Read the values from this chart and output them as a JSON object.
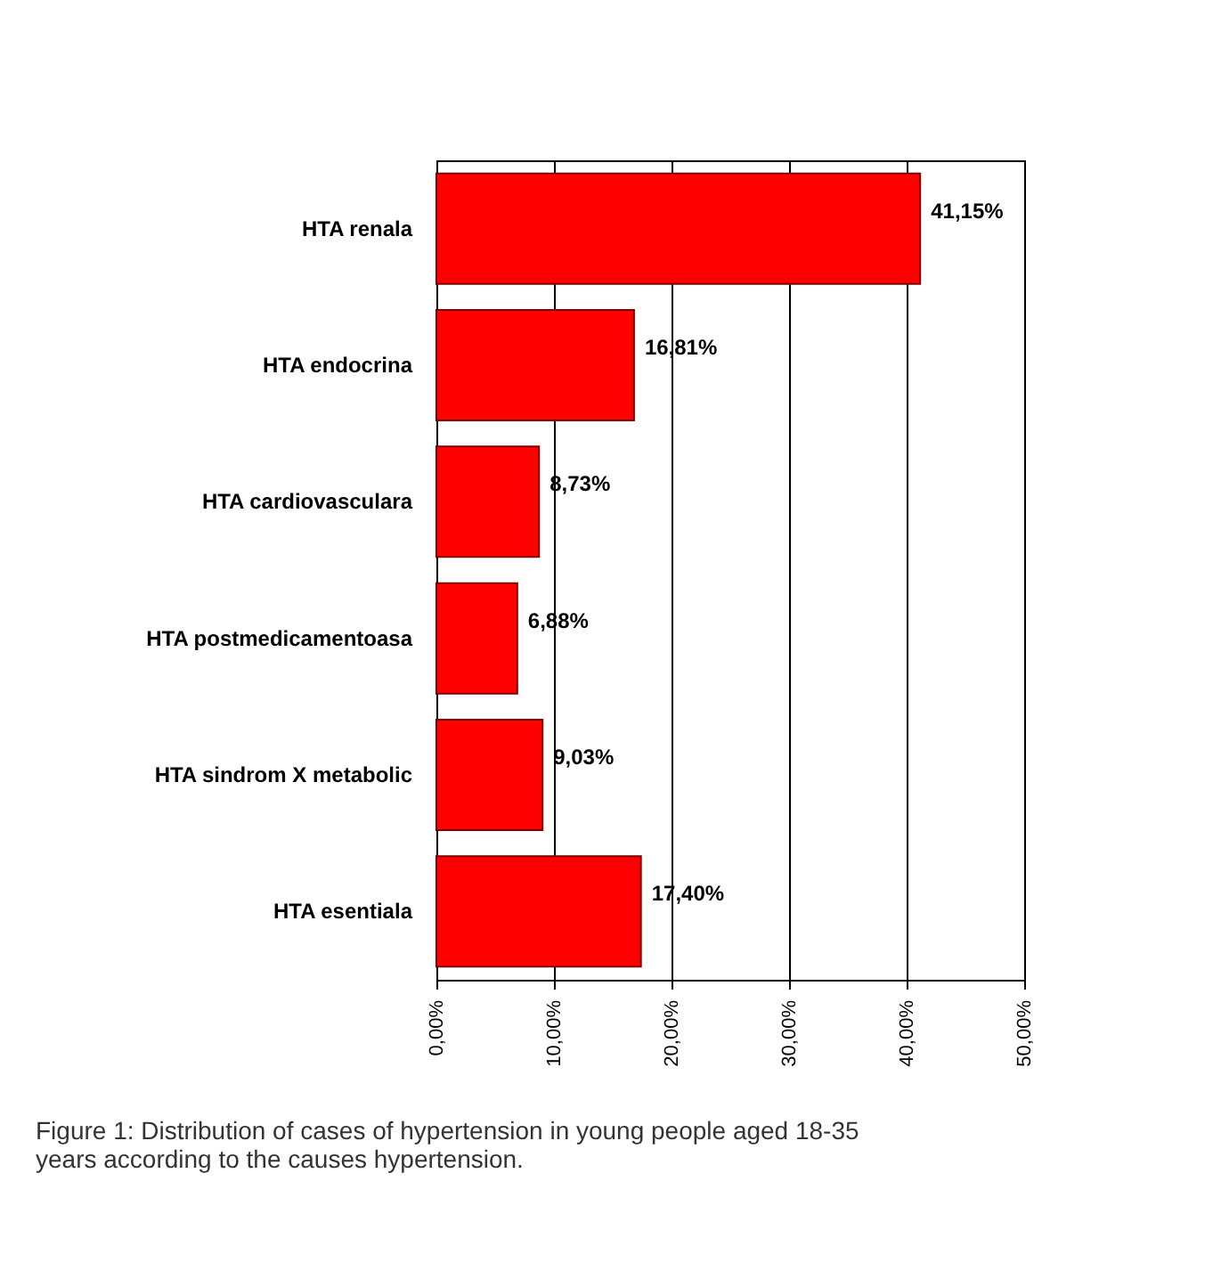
{
  "chart_data": {
    "type": "bar",
    "orientation": "horizontal",
    "categories": [
      "HTA renala",
      "HTA endocrina",
      "HTA cardiovasculara",
      "HTA postmedicamentoasa",
      "HTA sindrom X metabolic",
      "HTA esentiala"
    ],
    "values": [
      41.15,
      16.81,
      8.73,
      6.88,
      9.03,
      17.4
    ],
    "value_labels": [
      "41,15%",
      "16,81%",
      "8,73%",
      "6,88%",
      "9,03%",
      "17,40%"
    ],
    "color": "#ff0000",
    "xlim": [
      0,
      50
    ],
    "xticks": [
      {
        "value": 0,
        "label": "0,00%"
      },
      {
        "value": 10,
        "label": "10,00%"
      },
      {
        "value": 20,
        "label": "20,00%"
      },
      {
        "value": 30,
        "label": "30,00%"
      },
      {
        "value": 40,
        "label": "40,00%"
      },
      {
        "value": 50,
        "label": "50,00%"
      }
    ],
    "grid": "x",
    "annotations": [
      "Figure 1: Distribution of cases of hypertension in young people aged 18-35 years according to the causes hypertension."
    ]
  }
}
